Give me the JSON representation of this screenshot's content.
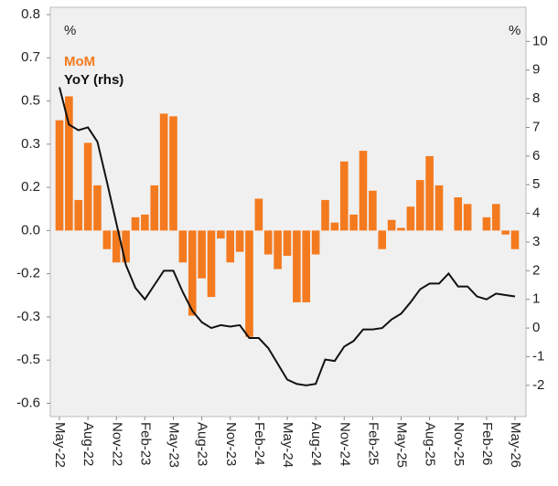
{
  "chart_data": {
    "type": "bar_line",
    "y_label": "%",
    "y2_label": "%",
    "categories": [
      "May-22",
      null,
      null,
      "Aug-22",
      null,
      null,
      "Nov-22",
      null,
      null,
      "Feb-23",
      null,
      null,
      "May-23",
      null,
      null,
      "Aug-23",
      null,
      null,
      "Nov-23",
      null,
      null,
      "Feb-24",
      null,
      null,
      "May-24",
      null,
      null,
      "Aug-24",
      null,
      null,
      "Nov-24",
      null,
      null,
      "Feb-25",
      null,
      null,
      "May-25",
      null,
      null,
      "Aug-25",
      null,
      null,
      "Nov-25",
      null,
      null,
      "Feb-26",
      null,
      null,
      "May-26"
    ],
    "series": [
      {
        "name": "MoM",
        "type": "bar",
        "color": "#f47a1f",
        "axis": "y",
        "values": [
          0.415,
          0.505,
          0.115,
          0.33,
          0.17,
          -0.07,
          -0.12,
          -0.12,
          0.05,
          0.06,
          0.17,
          0.44,
          0.43,
          -0.12,
          -0.32,
          -0.18,
          -0.25,
          -0.03,
          -0.12,
          -0.08,
          -0.4,
          0.12,
          -0.09,
          -0.145,
          -0.095,
          -0.27,
          -0.27,
          -0.09,
          0.115,
          0.03,
          0.26,
          0.06,
          0.3,
          0.15,
          -0.07,
          0.04,
          0.01,
          0.09,
          0.19,
          0.28,
          0.17,
          0,
          0.125,
          0.1,
          0,
          0.05,
          0.1,
          -0.015,
          -0.07
        ]
      },
      {
        "name": "YoY (rhs)",
        "type": "line",
        "color": "#111111",
        "axis": "y2",
        "values": [
          8.4,
          7.1,
          6.9,
          7.0,
          6.5,
          5.1,
          3.65,
          2.2,
          1.4,
          1.0,
          1.5,
          2.0,
          2.0,
          1.25,
          0.6,
          0.2,
          0.0,
          0.1,
          0.05,
          0.1,
          -0.35,
          -0.35,
          -0.7,
          -1.25,
          -1.8,
          -1.95,
          -2.0,
          -1.95,
          -1.1,
          -1.15,
          -0.65,
          -0.45,
          -0.05,
          -0.05,
          0.0,
          0.3,
          0.5,
          0.9,
          1.35,
          1.55,
          1.55,
          1.9,
          1.45,
          1.45,
          1.1,
          1.0,
          1.2,
          1.15,
          1.1
        ]
      }
    ],
    "ylim": [
      -0.7,
      0.84
    ],
    "yticks": [
      {
        "value": 0.8125,
        "label": "0.8"
      },
      {
        "value": 0.65,
        "label": "0.7"
      },
      {
        "value": 0.4875,
        "label": "0.5"
      },
      {
        "value": 0.325,
        "label": "0.3"
      },
      {
        "value": 0.1625,
        "label": "0.2"
      },
      {
        "value": 0,
        "label": "0.0"
      },
      {
        "value": -0.1625,
        "label": "-0.2"
      },
      {
        "value": -0.325,
        "label": "-0.3"
      },
      {
        "value": -0.4875,
        "label": "-0.5"
      },
      {
        "value": -0.65,
        "label": "-0.6"
      }
    ],
    "y2lim": [
      -3.09,
      11.19
    ],
    "y2ticks": [
      10,
      9,
      8,
      7,
      6,
      5,
      4,
      3,
      2,
      1,
      0,
      -1,
      -2
    ],
    "grid": false
  }
}
